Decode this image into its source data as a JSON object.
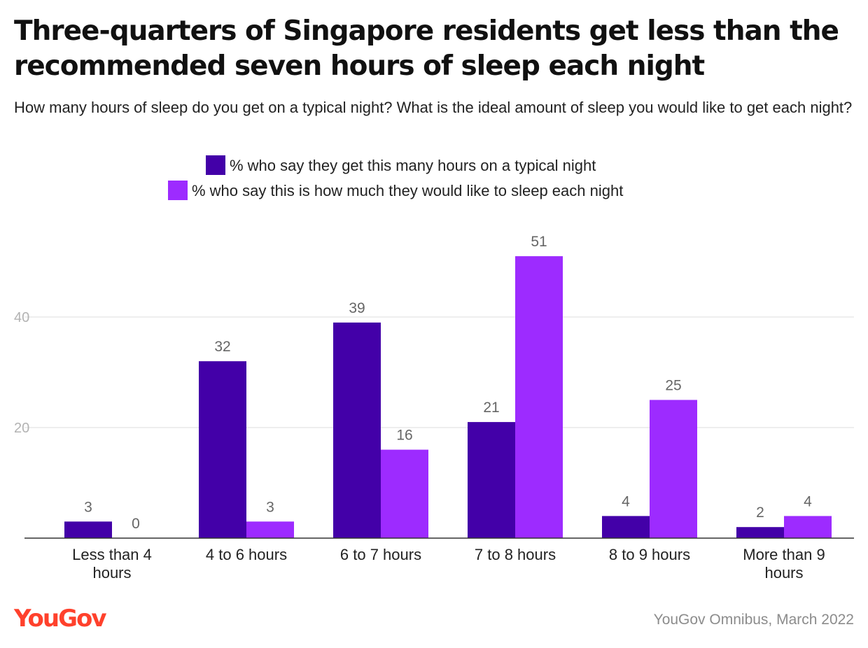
{
  "title": "Three-quarters of Singapore residents get less than the recommended seven hours of sleep each night",
  "subtitle": "How many hours of sleep do you get on a typical night? What is the ideal amount of sleep you would like to get each night?",
  "source": "YouGov Omnibus, March 2022",
  "logo_text": "YouGov",
  "colors": {
    "series1": "#4300a8",
    "series2": "#9d2bff",
    "grid": "#dddddd",
    "axis": "#333333",
    "brand": "#ff412c"
  },
  "chart_data": {
    "type": "bar",
    "categories": [
      [
        "Less than 4",
        "hours"
      ],
      [
        "4 to 6 hours"
      ],
      [
        "6 to 7 hours"
      ],
      [
        "7 to 8 hours"
      ],
      [
        "8 to 9 hours"
      ],
      [
        "More than 9",
        "hours"
      ]
    ],
    "series": [
      {
        "name": "% who say they get this many hours on a typical night",
        "values": [
          3,
          32,
          39,
          21,
          4,
          2
        ]
      },
      {
        "name": "% who say this is how much they would like to sleep each night",
        "values": [
          0,
          3,
          16,
          51,
          25,
          4
        ]
      }
    ],
    "yticks": [
      20,
      40
    ],
    "ylim": [
      0,
      51
    ],
    "grid": true,
    "legend_position": "top-center"
  }
}
